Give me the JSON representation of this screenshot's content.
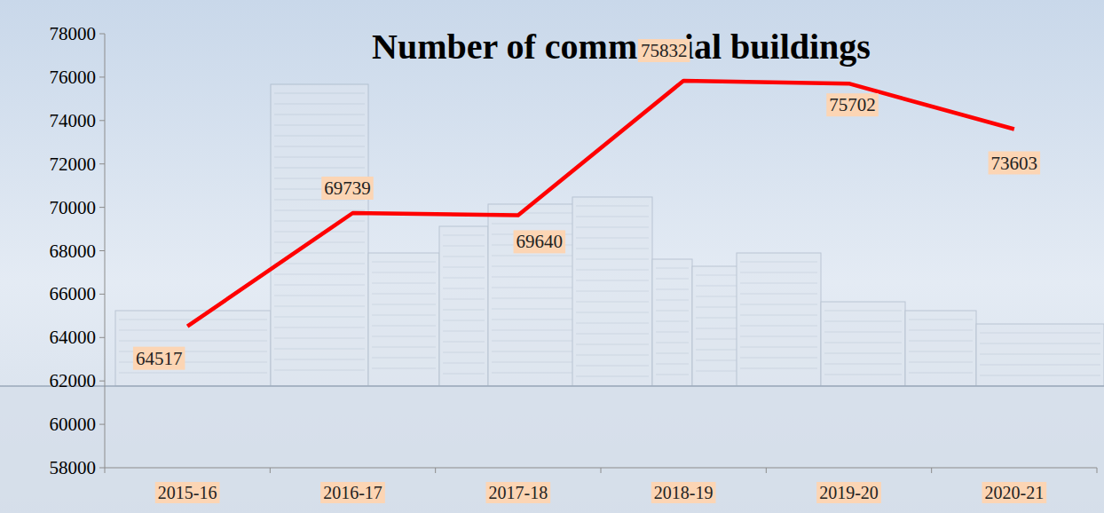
{
  "chart_data": {
    "type": "line",
    "title": "Number of commercial buildings",
    "categories": [
      "2015-16",
      "2016-17",
      "2017-18",
      "2018-19",
      "2019-20",
      "2020-21"
    ],
    "values": [
      64517,
      69739,
      69640,
      75832,
      75702,
      73603
    ],
    "color": "#ff0000",
    "ylim": [
      58000,
      78000
    ],
    "yticks": [
      58000,
      60000,
      62000,
      64000,
      66000,
      68000,
      70000,
      72000,
      74000,
      76000,
      78000
    ],
    "grid": false,
    "data_labels": true
  }
}
